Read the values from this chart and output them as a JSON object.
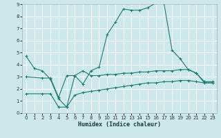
{
  "xlabel": "Humidex (Indice chaleur)",
  "background_color": "#cce8ea",
  "grid_color": "#ffffff",
  "line_color": "#1a7a6e",
  "xlim": [
    -0.5,
    23.5
  ],
  "ylim": [
    0,
    9
  ],
  "xticks": [
    0,
    1,
    2,
    3,
    4,
    5,
    6,
    7,
    8,
    9,
    10,
    11,
    12,
    13,
    14,
    15,
    16,
    17,
    18,
    19,
    20,
    21,
    22,
    23
  ],
  "yticks": [
    0,
    1,
    2,
    3,
    4,
    5,
    6,
    7,
    8,
    9
  ],
  "line1_x": [
    0,
    1,
    2,
    3,
    4,
    5,
    6,
    7,
    8,
    9,
    10,
    11,
    12,
    13,
    14,
    15,
    16,
    17,
    18,
    19,
    20,
    21,
    22,
    23
  ],
  "line1_y": [
    4.7,
    3.7,
    3.5,
    2.8,
    1.2,
    0.5,
    3.1,
    2.4,
    3.5,
    3.8,
    6.5,
    7.5,
    8.6,
    8.5,
    8.5,
    8.7,
    9.1,
    9.1,
    5.2,
    4.5,
    3.6,
    3.3,
    2.5,
    2.5
  ],
  "line2_x": [
    0,
    2,
    3,
    4,
    5,
    6,
    7,
    8,
    9,
    10,
    11,
    12,
    13,
    14,
    15,
    16,
    17,
    18,
    19,
    20,
    21,
    22,
    23
  ],
  "line2_y": [
    3.0,
    2.9,
    2.9,
    1.3,
    3.1,
    3.1,
    3.5,
    3.1,
    3.1,
    3.2,
    3.2,
    3.3,
    3.3,
    3.4,
    3.4,
    3.5,
    3.5,
    3.5,
    3.6,
    3.6,
    3.3,
    2.6,
    2.6
  ],
  "line3_x": [
    0,
    2,
    3,
    4,
    5,
    6,
    7,
    8,
    9,
    10,
    11,
    12,
    13,
    14,
    15,
    16,
    17,
    18,
    19,
    20,
    21,
    22,
    23
  ],
  "line3_y": [
    1.6,
    1.6,
    1.6,
    0.5,
    0.5,
    1.5,
    1.7,
    1.8,
    1.9,
    2.0,
    2.1,
    2.2,
    2.3,
    2.4,
    2.5,
    2.5,
    2.6,
    2.6,
    2.7,
    2.7,
    2.6,
    2.5,
    2.5
  ]
}
